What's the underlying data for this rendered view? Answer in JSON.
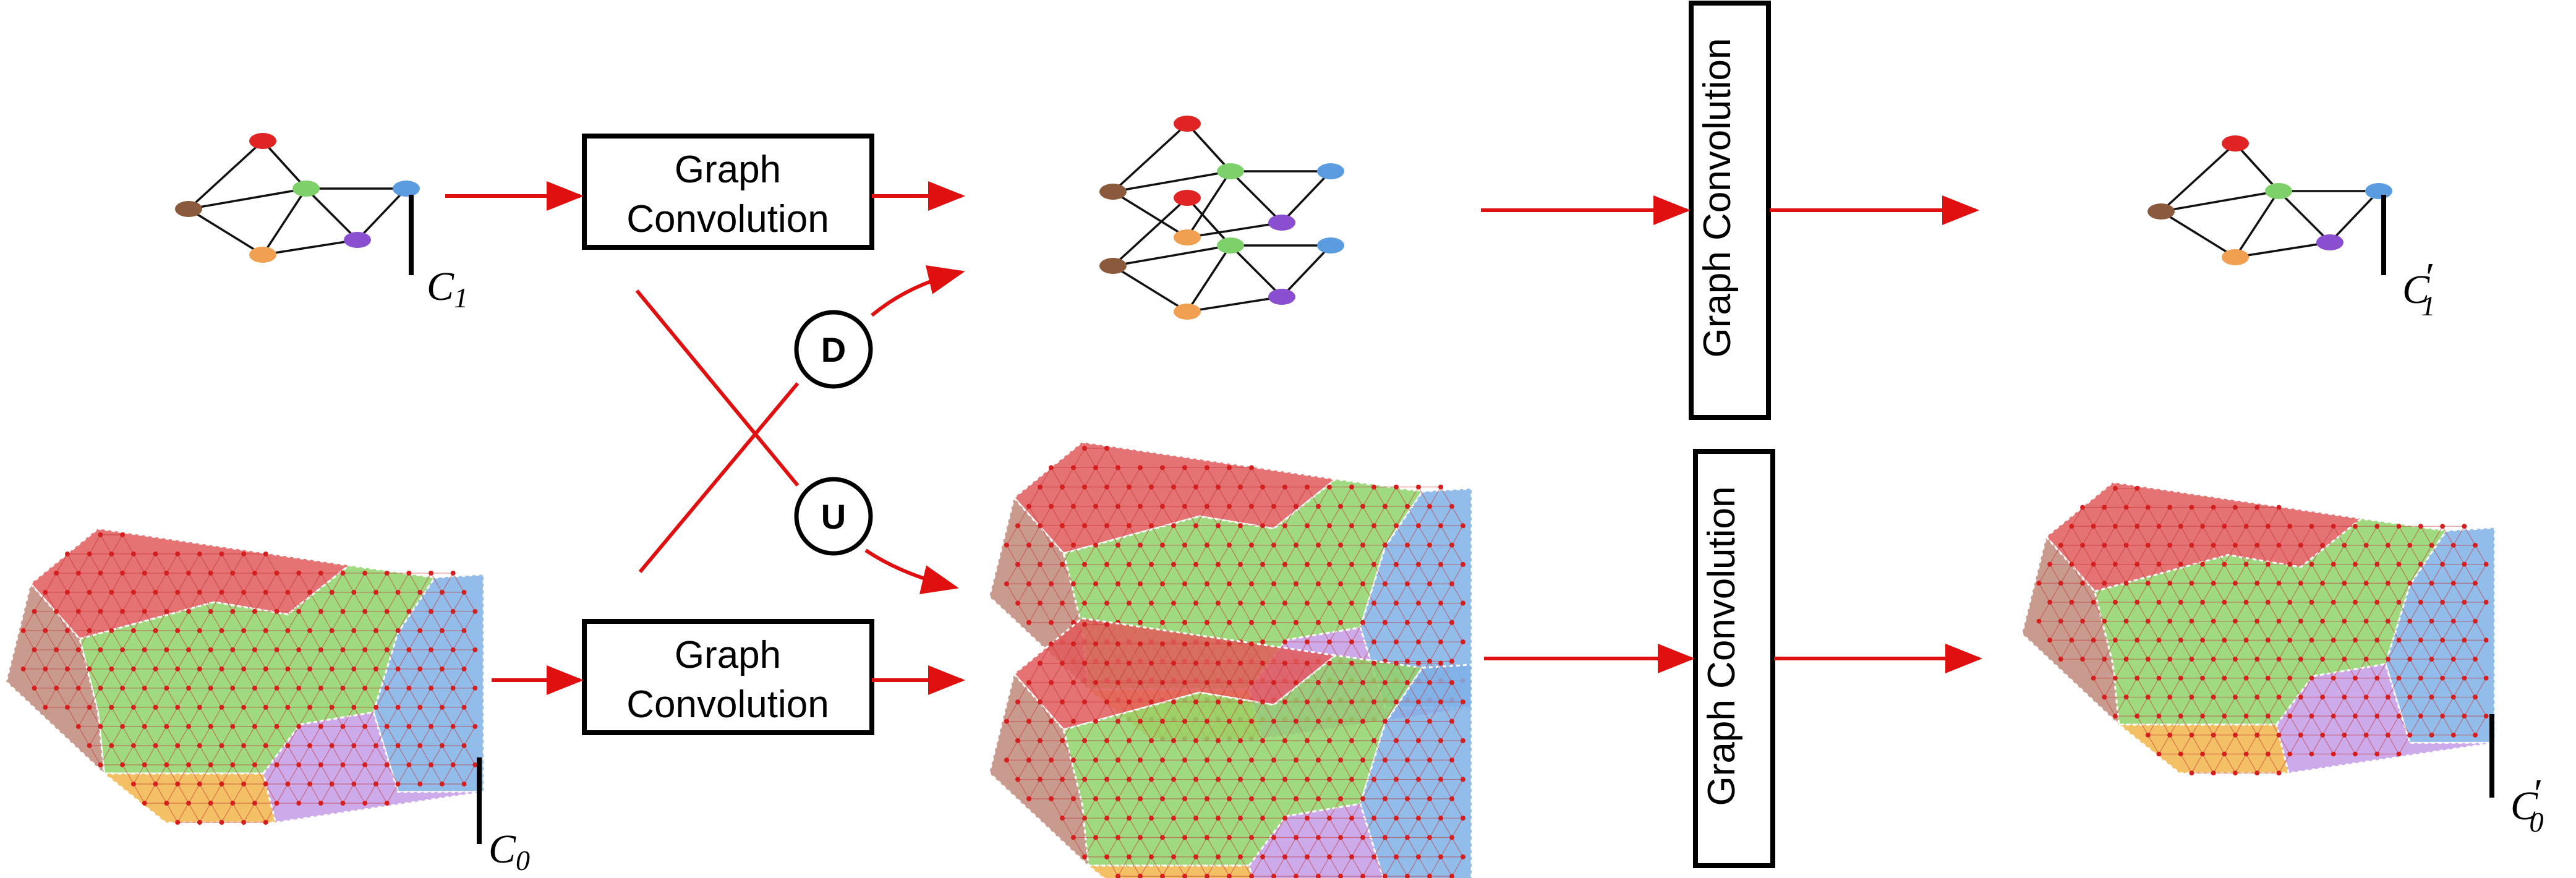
{
  "boxes": {
    "gc_top": {
      "line1": "Graph",
      "line2": "Convolution"
    },
    "gc_bottom": {
      "line1": "Graph",
      "line2": "Convolution"
    },
    "gc_right_top": {
      "label": "Graph Convolution"
    },
    "gc_right_bottom": {
      "label": "Graph Convolution"
    }
  },
  "operators": {
    "down": "D",
    "up": "U"
  },
  "labels": {
    "c1": {
      "main": "C",
      "sub": "1",
      "prime": ""
    },
    "c0": {
      "main": "C",
      "sub": "0",
      "prime": ""
    },
    "c1_out": {
      "main": "C",
      "sub": "1",
      "prime": "′"
    },
    "c0_out": {
      "main": "C",
      "sub": "0",
      "prime": "′"
    }
  },
  "colors": {
    "arrow": "#e01010",
    "node_red": "#e02424",
    "node_green": "#7ed06a",
    "node_blue": "#5b9be0",
    "node_purple": "#8a4fd0",
    "node_orange": "#f0a050",
    "node_brown": "#8b5a3c",
    "region_red": "#e05a5a",
    "region_green": "#8fd36a",
    "region_blue": "#7fb2e8",
    "region_purple": "#c49be6",
    "region_orange": "#f2b54a",
    "region_brown": "#c08a7a"
  }
}
